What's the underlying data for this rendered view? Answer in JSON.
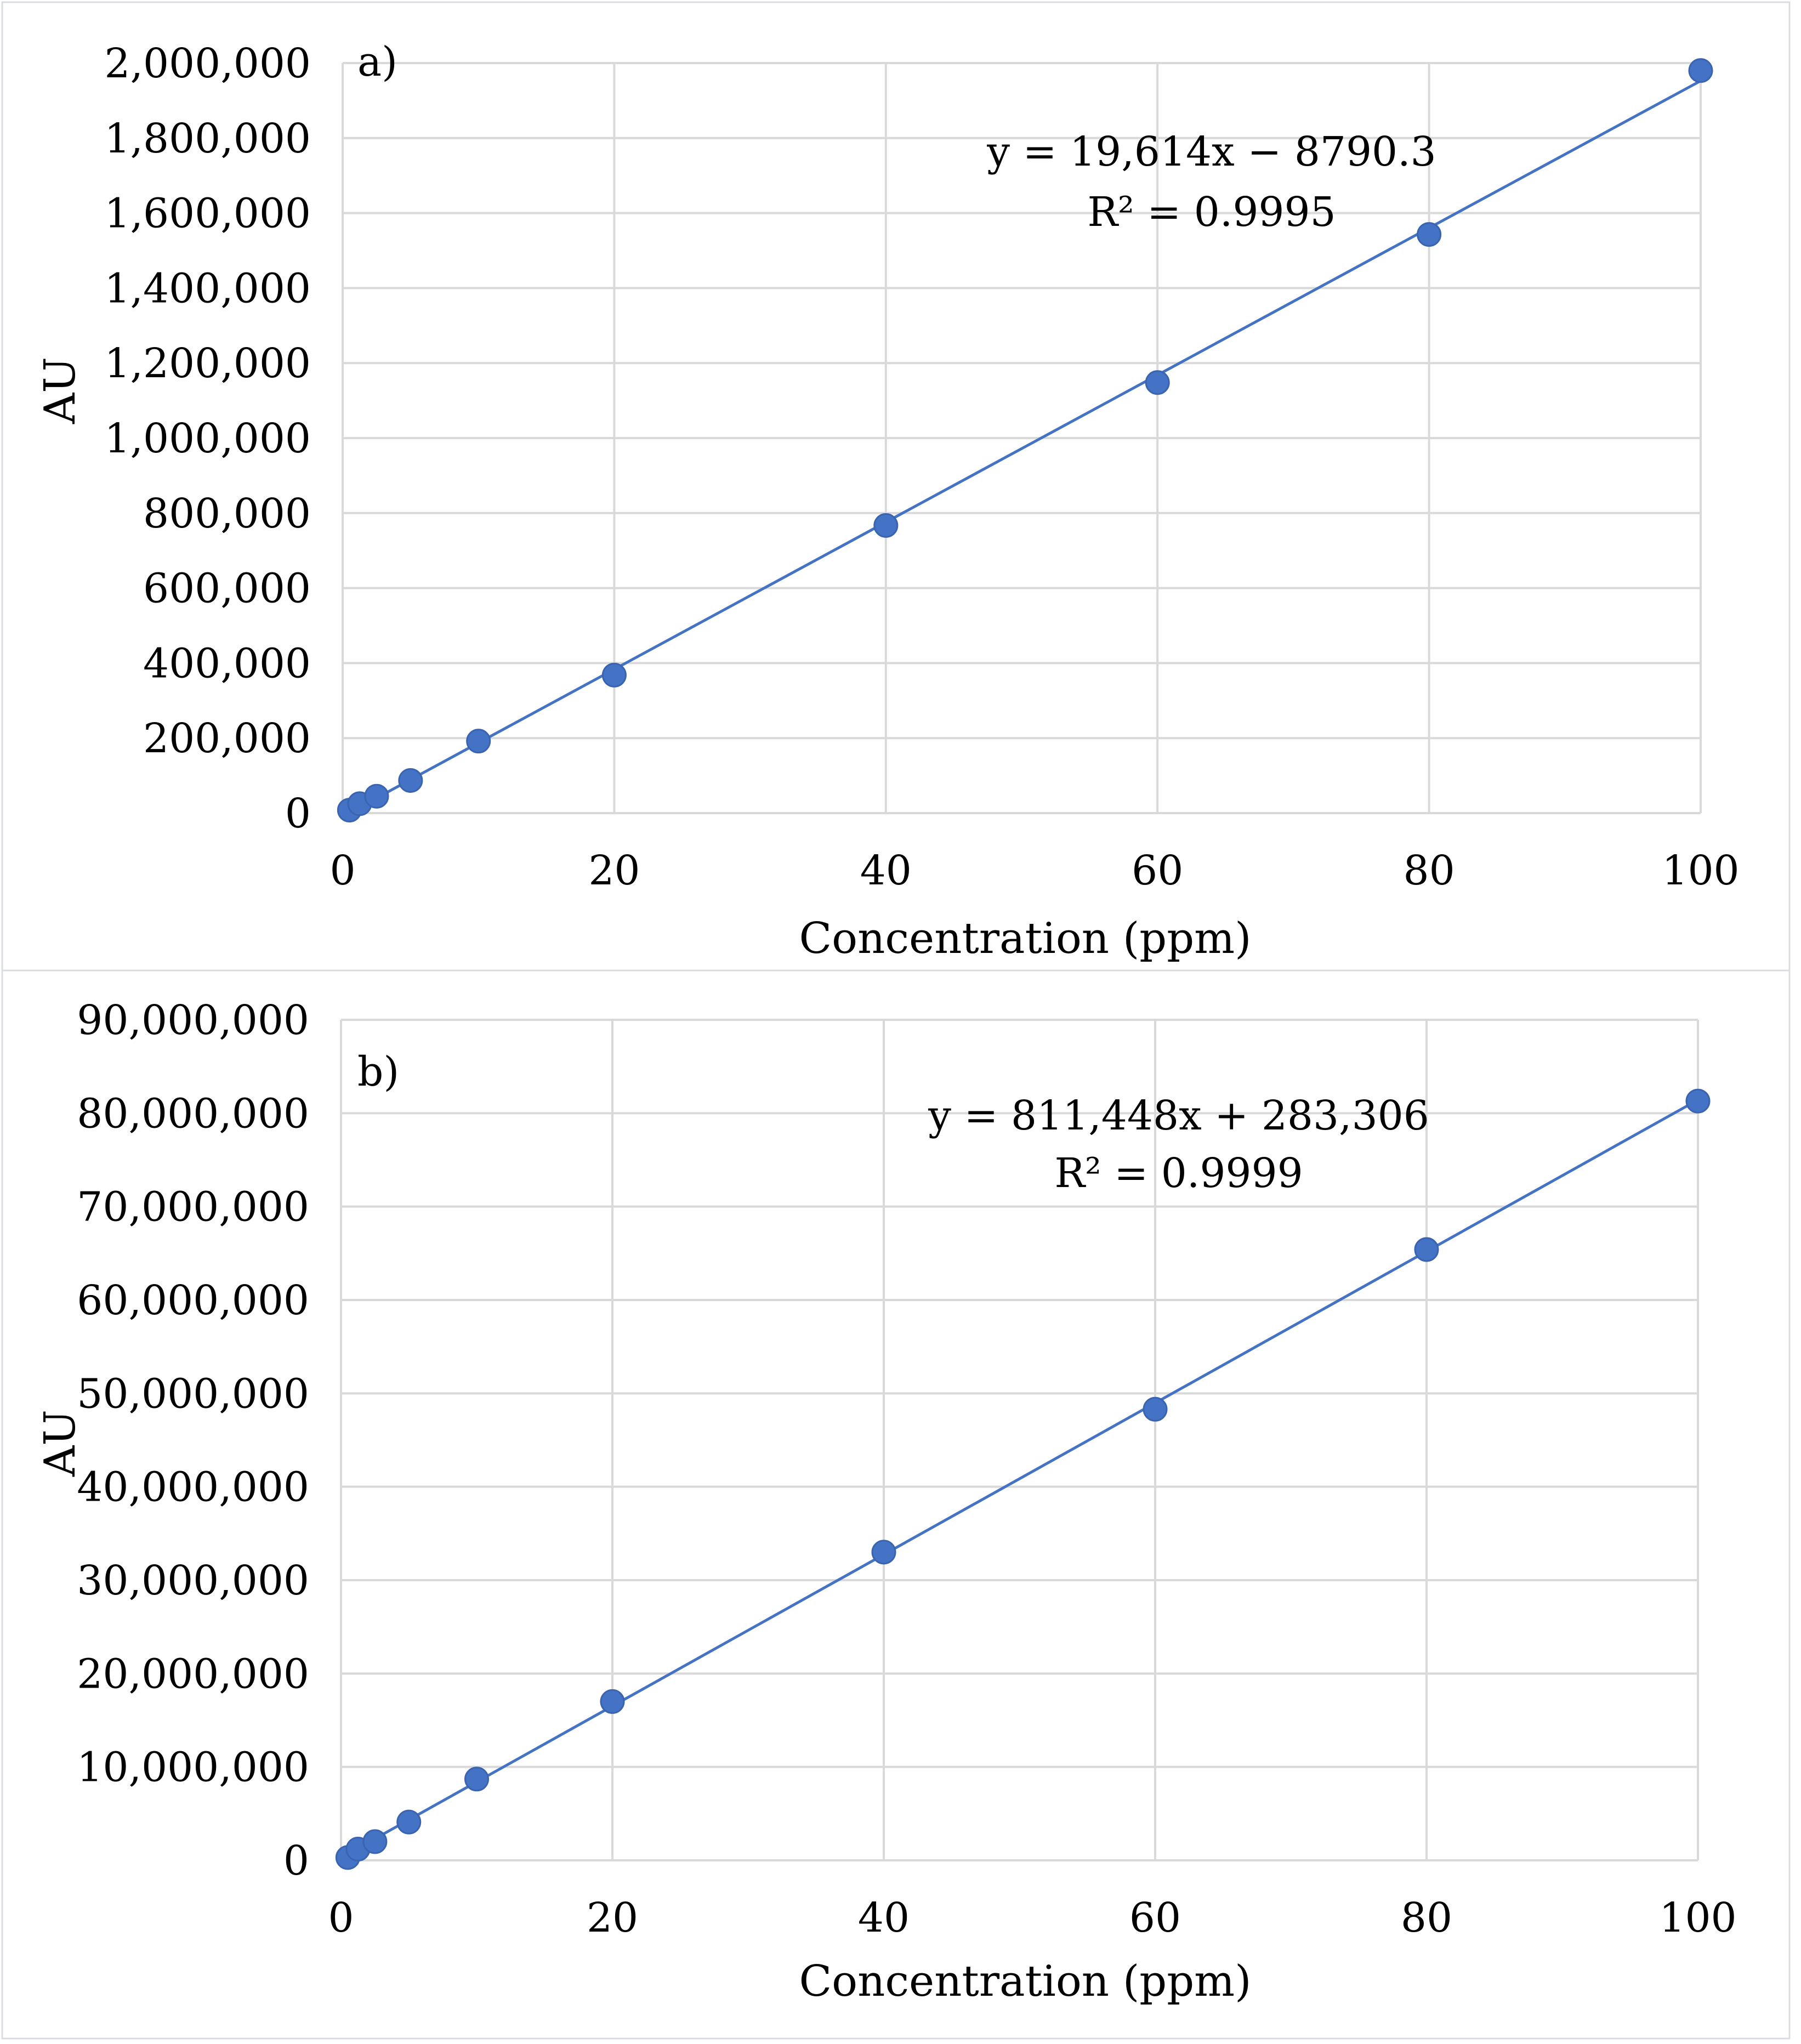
{
  "chart_data": [
    {
      "type": "scatter",
      "panel_label": "a)",
      "xlabel": "Concentration (ppm)",
      "ylabel": "AU",
      "xlim": [
        0,
        100
      ],
      "ylim": [
        0,
        2000000
      ],
      "x_ticks": [
        "0",
        "20",
        "40",
        "60",
        "80",
        "100"
      ],
      "y_ticks": [
        "0",
        "200,000",
        "400,000",
        "600,000",
        "800,000",
        "1,000,000",
        "1,200,000",
        "1,400,000",
        "1,600,000",
        "1,800,000",
        "2,000,000"
      ],
      "grid": true,
      "series": [
        {
          "name": "AU",
          "x": [
            0.5,
            1.25,
            2.5,
            5,
            10,
            20,
            40,
            60,
            80,
            100
          ],
          "y": [
            8000,
            25000,
            45000,
            87000,
            192000,
            368000,
            767000,
            1148000,
            1543000,
            1980000
          ]
        }
      ],
      "trendline": {
        "slope": 19614,
        "intercept": -8790.3,
        "x_range": [
          0,
          100
        ]
      },
      "equation": "y = 19,614x − 8790.3",
      "r_squared": "R² = 0.9995"
    },
    {
      "type": "scatter",
      "panel_label": "b)",
      "xlabel": "Concentration (ppm)",
      "ylabel": "AU",
      "xlim": [
        0,
        100
      ],
      "ylim": [
        0,
        90000000
      ],
      "x_ticks": [
        "0",
        "20",
        "40",
        "60",
        "80",
        "100"
      ],
      "y_ticks": [
        "0",
        "10,000,000",
        "20,000,000",
        "30,000,000",
        "40,000,000",
        "50,000,000",
        "60,000,000",
        "70,000,000",
        "80,000,000",
        "90,000,000"
      ],
      "grid": true,
      "series": [
        {
          "name": "AU",
          "x": [
            0.5,
            1.25,
            2.5,
            5,
            10,
            20,
            40,
            60,
            80,
            100
          ],
          "y": [
            300000,
            1200000,
            2000000,
            4100000,
            8700000,
            17000000,
            33000000,
            48300000,
            65400000,
            81300000
          ]
        }
      ],
      "trendline": {
        "slope": 811448,
        "intercept": 283306,
        "x_range": [
          0,
          100
        ]
      },
      "equation": "y = 811,448x + 283,306",
      "r_squared": "R² = 0.9999"
    }
  ]
}
